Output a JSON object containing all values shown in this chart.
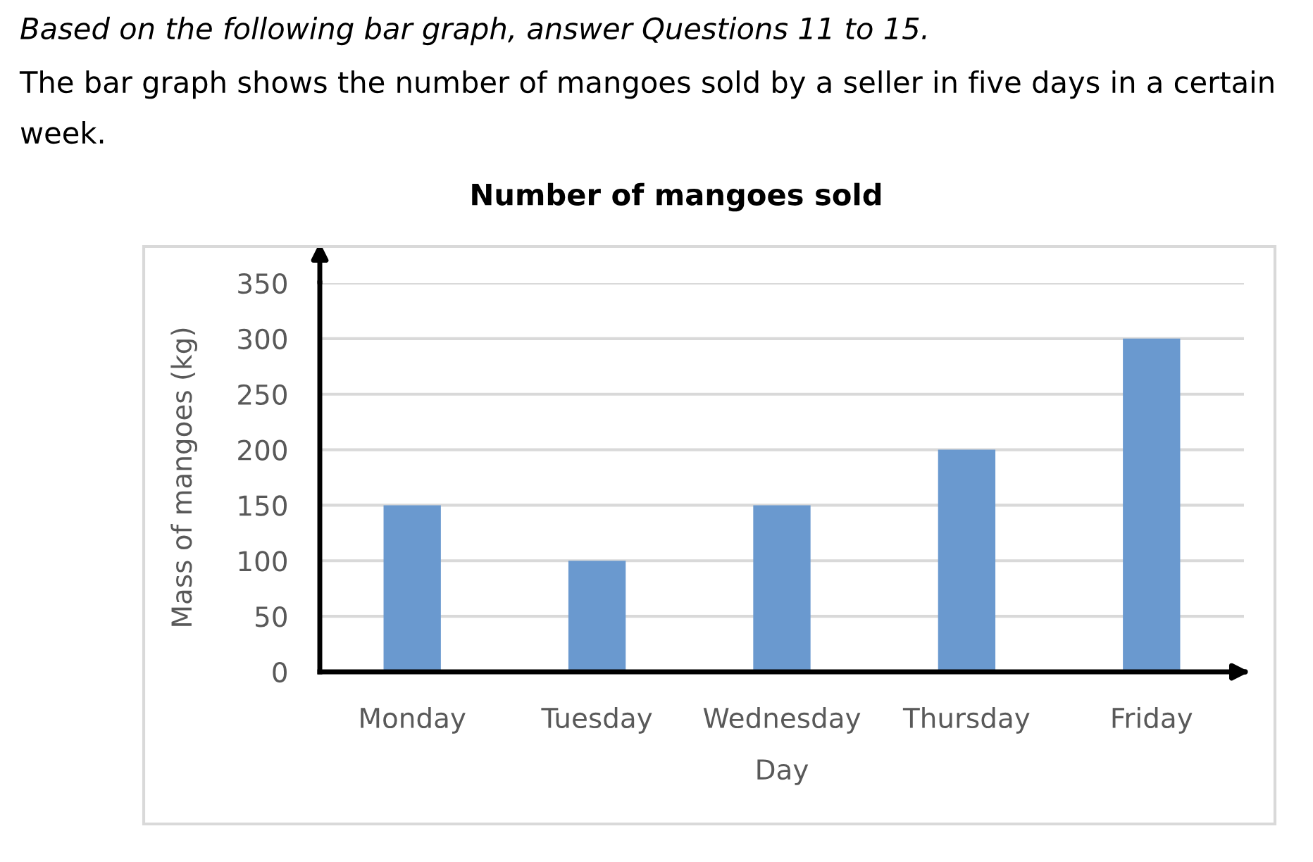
{
  "chart_data": {
    "type": "bar",
    "title": "Number of mangoes sold",
    "xlabel": "Day",
    "ylabel": "Mass of mangoes (kg)",
    "annotations": [
      "Based on the following bar graph, answer Questions 11 to 15.",
      "The bar graph shows the number of mangoes sold by a seller in five days in a certain week."
    ],
    "categories": [
      "Monday",
      "Tuesday",
      "Wednesday",
      "Thursday",
      "Friday"
    ],
    "values": [
      150,
      100,
      150,
      200,
      300
    ],
    "color": "#6a99cf",
    "ylim": [
      0,
      350
    ],
    "yticks": [
      0,
      50,
      100,
      150,
      200,
      250,
      300,
      350
    ],
    "grid": "y"
  }
}
